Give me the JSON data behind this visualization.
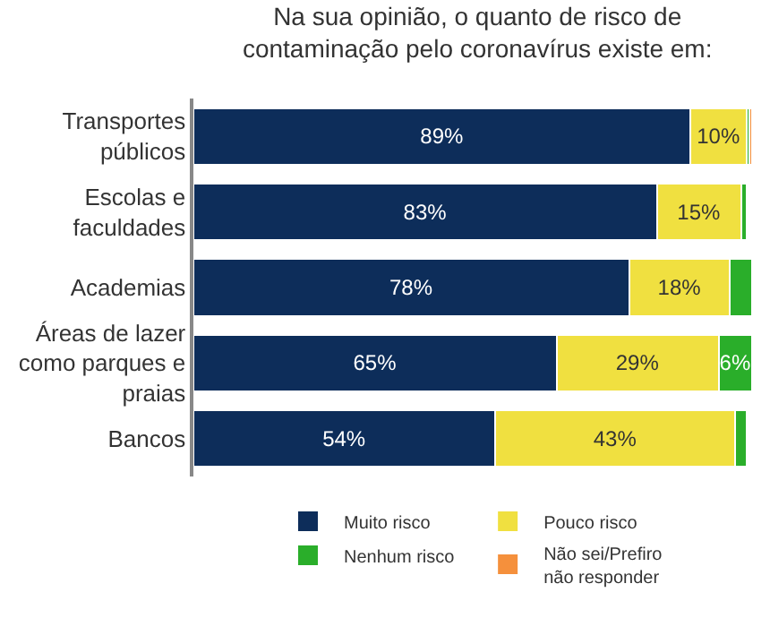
{
  "chart_data": {
    "type": "bar",
    "orientation": "horizontal",
    "stacked": true,
    "title": "Na sua opinião, o quanto de risco de\ncontaminação pelo coronavírus existe em:",
    "categories": [
      "Transportes\npúblicos",
      "Escolas e\nfaculdades",
      "Academias",
      "Áreas de lazer\ncomo parques e\npraias",
      "Bancos"
    ],
    "series": [
      {
        "name": "Muito risco",
        "color": "#0d2d5a",
        "values": [
          89,
          83,
          78,
          65,
          54
        ],
        "value_labels": [
          "89%",
          "83%",
          "78%",
          "65%",
          "54%"
        ]
      },
      {
        "name": "Pouco risco",
        "color": "#f0e040",
        "values": [
          10,
          15,
          18,
          29,
          43
        ],
        "value_labels": [
          "10%",
          "15%",
          "18%",
          "29%",
          "43%"
        ]
      },
      {
        "name": "Nenhum risco",
        "color": "#2aae2a",
        "values": [
          0.5,
          1,
          4,
          6,
          2
        ],
        "value_labels": [
          null,
          null,
          null,
          "6%",
          null
        ]
      },
      {
        "name": "Não sei/Prefiro\nnão responder",
        "color": "#f5903c",
        "values": [
          0.5,
          null,
          null,
          null,
          null
        ],
        "value_labels": [
          null,
          null,
          null,
          null,
          null
        ]
      }
    ],
    "legend": "bottom",
    "tick_labels": "y"
  }
}
